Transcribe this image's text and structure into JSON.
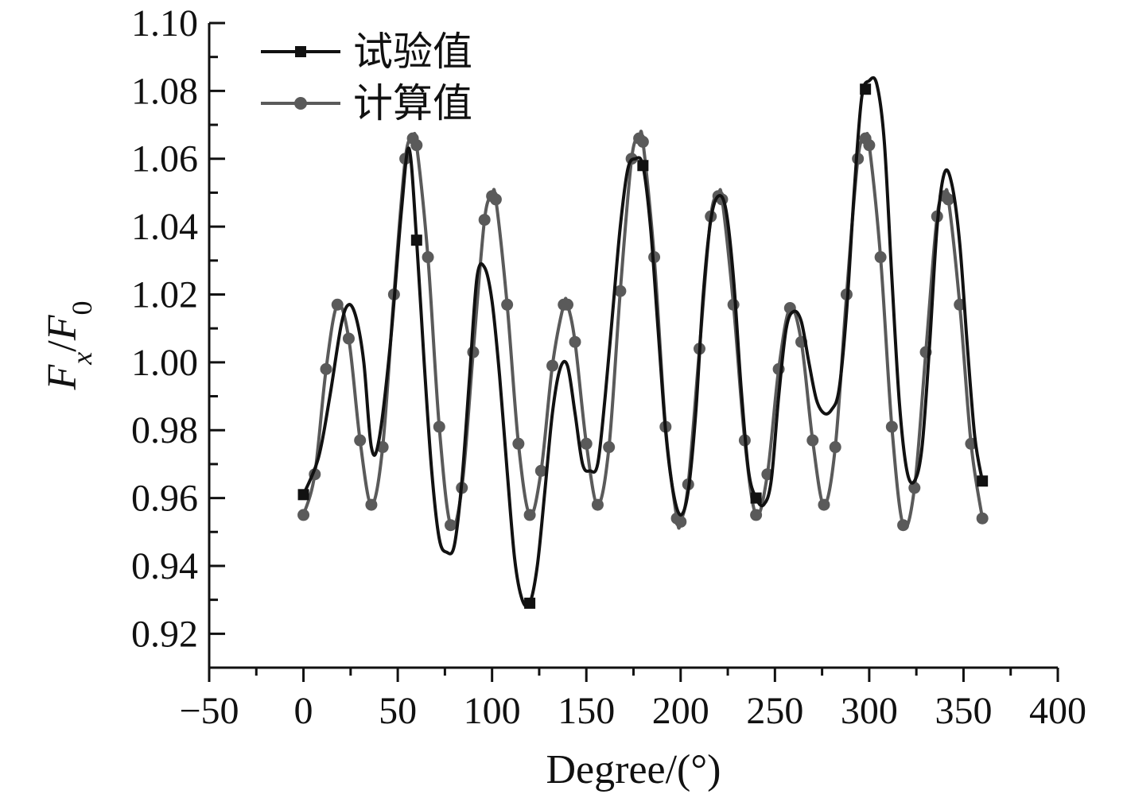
{
  "chart_data": {
    "type": "line",
    "title": "",
    "xlabel": "Degree/(°)",
    "ylabel": "F_x/F_0",
    "ylabel_parts": {
      "base1": "F",
      "sub1": "x",
      "slash": "/",
      "base2": "F",
      "sub2": "0"
    },
    "xlim": [
      -50,
      400
    ],
    "ylim": [
      0.91,
      1.1
    ],
    "xticks": [
      -50,
      0,
      50,
      100,
      150,
      200,
      250,
      300,
      350,
      400
    ],
    "xtick_labels": [
      "−50",
      "0",
      "50",
      "100",
      "150",
      "200",
      "250",
      "300",
      "350",
      "400"
    ],
    "yticks": [
      0.92,
      0.94,
      0.96,
      0.98,
      1.0,
      1.02,
      1.04,
      1.06,
      1.08,
      1.1
    ],
    "ytick_labels": [
      "0.92",
      "0.94",
      "0.96",
      "0.98",
      "1.00",
      "1.02",
      "1.04",
      "1.06",
      "1.08",
      "1.10"
    ],
    "grid": false,
    "legend_position": "top-left",
    "series": [
      {
        "name": "试验值",
        "color": "#111111",
        "marker": "square",
        "x": [
          0,
          8,
          14,
          20,
          24,
          28,
          32,
          36,
          40,
          46,
          52,
          56,
          60,
          64,
          68,
          72,
          76,
          80,
          84,
          88,
          92,
          96,
          100,
          104,
          108,
          112,
          116,
          120,
          124,
          128,
          132,
          136,
          140,
          144,
          148,
          152,
          156,
          160,
          164,
          168,
          172,
          176,
          180,
          184,
          188,
          192,
          196,
          200,
          204,
          208,
          212,
          216,
          220,
          224,
          228,
          232,
          236,
          240,
          244,
          248,
          252,
          256,
          260,
          264,
          268,
          272,
          276,
          280,
          284,
          288,
          292,
          296,
          300,
          304,
          308,
          312,
          316,
          320,
          324,
          328,
          332,
          336,
          340,
          344,
          348,
          352,
          356,
          360
        ],
        "y": [
          0.961,
          0.972,
          0.99,
          1.011,
          1.017,
          1.013,
          1.0,
          0.975,
          0.977,
          1.005,
          1.045,
          1.063,
          1.036,
          1.0,
          0.968,
          0.948,
          0.944,
          0.946,
          0.965,
          0.995,
          1.025,
          1.028,
          1.018,
          0.996,
          0.968,
          0.942,
          0.93,
          0.929,
          0.94,
          0.962,
          0.985,
          0.998,
          0.999,
          0.985,
          0.97,
          0.968,
          0.97,
          0.99,
          1.015,
          1.04,
          1.057,
          1.06,
          1.058,
          1.04,
          1.01,
          0.98,
          0.962,
          0.955,
          0.962,
          0.985,
          1.02,
          1.042,
          1.049,
          1.045,
          1.025,
          0.993,
          0.968,
          0.96,
          0.958,
          0.965,
          0.99,
          1.01,
          1.015,
          1.012,
          1.0,
          0.989,
          0.985,
          0.986,
          0.992,
          1.015,
          1.05,
          1.078,
          1.083,
          1.082,
          1.065,
          1.025,
          0.988,
          0.968,
          0.965,
          0.975,
          1.005,
          1.04,
          1.056,
          1.052,
          1.035,
          1.005,
          0.978,
          0.965
        ]
      },
      {
        "name": "计算值",
        "color": "#5a5a5a",
        "marker": "circle",
        "x": [
          0,
          6,
          12,
          18,
          24,
          30,
          36,
          42,
          48,
          54,
          58,
          60,
          66,
          72,
          78,
          84,
          90,
          96,
          100,
          102,
          108,
          114,
          120,
          126,
          132,
          138,
          140,
          144,
          150,
          156,
          162,
          168,
          174,
          178,
          180,
          186,
          192,
          198,
          200,
          204,
          210,
          216,
          220,
          222,
          228,
          234,
          240,
          246,
          252,
          258,
          264,
          270,
          276,
          282,
          288,
          294,
          298,
          300,
          306,
          312,
          318,
          324,
          330,
          336,
          340,
          342,
          348,
          354,
          360
        ],
        "y": [
          0.955,
          0.967,
          0.998,
          1.017,
          1.007,
          0.977,
          0.958,
          0.975,
          1.02,
          1.06,
          1.066,
          1.064,
          1.031,
          0.981,
          0.952,
          0.963,
          1.003,
          1.042,
          1.049,
          1.048,
          1.017,
          0.976,
          0.955,
          0.968,
          0.999,
          1.017,
          1.017,
          1.006,
          0.976,
          0.958,
          0.975,
          1.021,
          1.06,
          1.066,
          1.065,
          1.031,
          0.981,
          0.954,
          0.953,
          0.964,
          1.004,
          1.043,
          1.049,
          1.048,
          1.017,
          0.977,
          0.955,
          0.967,
          0.998,
          1.016,
          1.006,
          0.977,
          0.958,
          0.975,
          1.02,
          1.06,
          1.066,
          1.064,
          1.031,
          0.981,
          0.952,
          0.963,
          1.003,
          1.043,
          1.049,
          1.048,
          1.017,
          0.976,
          0.954
        ]
      }
    ]
  }
}
